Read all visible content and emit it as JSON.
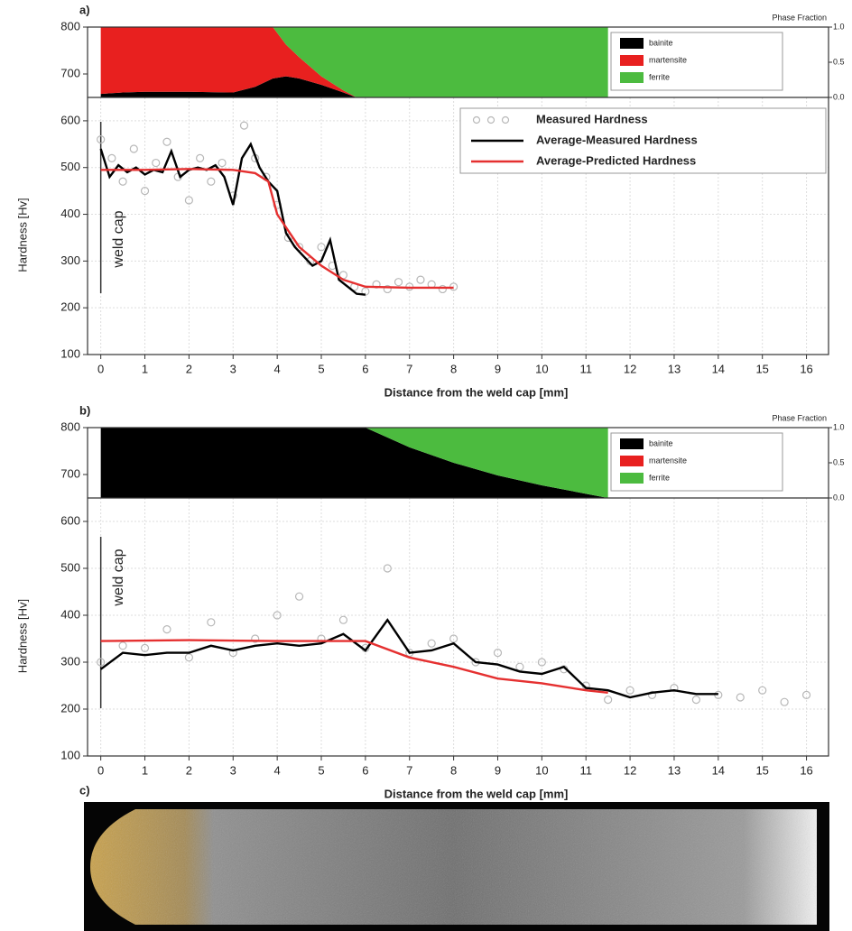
{
  "chart_data": [
    {
      "type": "line",
      "label": "a)",
      "x_label": "Distance from the weld cap [mm]",
      "y_label": "Hardness [Hv]",
      "annotation": "weld cap",
      "xlim": [
        -0.3,
        16.5
      ],
      "xticks": [
        0,
        1,
        2,
        3,
        4,
        5,
        6,
        7,
        8,
        9,
        10,
        11,
        12,
        13,
        14,
        15,
        16
      ],
      "ylim": [
        100,
        650
      ],
      "yticks": [
        100,
        200,
        300,
        400,
        500,
        600
      ],
      "grid": true,
      "legend": true,
      "phase": {
        "ylim": [
          650,
          800
        ],
        "yticks": [
          700,
          800
        ],
        "y2lim": [
          0,
          1
        ],
        "y2ticks": [
          {
            "value": 0,
            "label": "0.0"
          },
          {
            "value": 0.5,
            "label": "0.5"
          },
          {
            "value": 1,
            "label": "1.0"
          }
        ],
        "y2_label": "Phase Fraction",
        "legend": true,
        "x": [
          0,
          0.5,
          1,
          2,
          3,
          3.5,
          3.9,
          4.2,
          4.5,
          5,
          5.5,
          5.8,
          6,
          8,
          11.5
        ],
        "series": [
          {
            "name": "bainite",
            "color": "#000000",
            "values": [
              0.05,
              0.07,
              0.08,
              0.08,
              0.07,
              0.15,
              0.27,
              0.3,
              0.27,
              0.18,
              0.07,
              0,
              0,
              0,
              0
            ]
          },
          {
            "name": "martensite",
            "color": "#e8201f",
            "values": [
              0.95,
              0.93,
              0.92,
              0.92,
              0.93,
              0.85,
              0.73,
              0.45,
              0.3,
              0.12,
              0.03,
              0,
              0,
              0,
              0
            ]
          },
          {
            "name": "ferrite",
            "color": "#4cbb3f",
            "values": [
              0,
              0,
              0,
              0,
              0,
              0,
              0,
              0.25,
              0.43,
              0.7,
              0.9,
              1,
              1,
              1,
              1
            ]
          }
        ]
      },
      "series": [
        {
          "name": "Measured Hardness",
          "type": "scatter",
          "color": "#b8b8b8",
          "x": [
            0,
            0.25,
            0.5,
            0.75,
            1,
            1.25,
            1.5,
            1.75,
            2,
            2.25,
            2.5,
            2.75,
            3,
            3.25,
            3.5,
            3.75,
            4,
            4.25,
            4.5,
            4.75,
            5,
            5.25,
            5.5,
            5.75,
            6,
            6.25,
            6.5,
            6.75,
            7,
            7.25,
            7.5,
            7.75,
            8
          ],
          "values": [
            560,
            520,
            470,
            540,
            450,
            510,
            555,
            480,
            430,
            520,
            470,
            510,
            440,
            590,
            520,
            480,
            420,
            350,
            330,
            300,
            330,
            290,
            270,
            245,
            235,
            250,
            240,
            255,
            245,
            260,
            250,
            240,
            245
          ]
        },
        {
          "name": "Average-Measured Hardness",
          "type": "line",
          "color": "#000000",
          "x": [
            0,
            0.2,
            0.4,
            0.6,
            0.8,
            1,
            1.2,
            1.4,
            1.6,
            1.8,
            2,
            2.2,
            2.4,
            2.6,
            2.8,
            3,
            3.2,
            3.4,
            3.6,
            3.8,
            4,
            4.2,
            4.4,
            4.6,
            4.8,
            5,
            5.2,
            5.4,
            5.6,
            5.8,
            6
          ],
          "values": [
            540,
            480,
            505,
            490,
            500,
            485,
            495,
            490,
            535,
            480,
            495,
            500,
            495,
            505,
            480,
            420,
            520,
            550,
            500,
            470,
            450,
            360,
            330,
            310,
            290,
            300,
            345,
            260,
            245,
            230,
            228
          ]
        },
        {
          "name": "Average-Predicted Hardness",
          "type": "line",
          "color": "#e53030",
          "x": [
            0,
            1,
            2,
            3,
            3.5,
            3.8,
            4,
            4.5,
            5,
            5.5,
            6,
            7,
            8
          ],
          "values": [
            495,
            495,
            497,
            495,
            488,
            470,
            400,
            330,
            290,
            260,
            245,
            243,
            243
          ]
        }
      ]
    },
    {
      "type": "line",
      "label": "b)",
      "x_label": "Distance from the weld cap [mm]",
      "y_label": "Hardness [Hv]",
      "annotation": "weld cap",
      "xlim": [
        -0.3,
        16.5
      ],
      "xticks": [
        0,
        1,
        2,
        3,
        4,
        5,
        6,
        7,
        8,
        9,
        10,
        11,
        12,
        13,
        14,
        15,
        16
      ],
      "ylim": [
        100,
        650
      ],
      "yticks": [
        100,
        200,
        300,
        400,
        500,
        600
      ],
      "grid": true,
      "legend": false,
      "phase": {
        "ylim": [
          650,
          800
        ],
        "yticks": [
          700,
          800
        ],
        "y2lim": [
          0,
          1
        ],
        "y2ticks": [
          {
            "value": 0,
            "label": "0.0"
          },
          {
            "value": 0.5,
            "label": "0.5"
          },
          {
            "value": 1,
            "label": "1.0"
          }
        ],
        "y2_label": "Phase Fraction",
        "legend": true,
        "x": [
          0,
          6,
          7,
          8,
          9,
          10,
          11,
          11.5
        ],
        "series": [
          {
            "name": "bainite",
            "color": "#000000",
            "values": [
              1,
              1,
              0.72,
              0.5,
              0.32,
              0.18,
              0.06,
              0
            ]
          },
          {
            "name": "martensite",
            "color": "#e8201f",
            "values": [
              0,
              0,
              0,
              0,
              0,
              0,
              0,
              0
            ]
          },
          {
            "name": "ferrite",
            "color": "#4cbb3f",
            "values": [
              0,
              0,
              0.28,
              0.5,
              0.68,
              0.82,
              0.94,
              1
            ]
          }
        ]
      },
      "series": [
        {
          "type": "scatter",
          "color": "#b8b8b8",
          "x": [
            0,
            0.5,
            1,
            1.5,
            2,
            2.5,
            3,
            3.5,
            4,
            4.5,
            5,
            5.5,
            6,
            6.5,
            7,
            7.5,
            8,
            8.5,
            9,
            9.5,
            10,
            10.5,
            11,
            11.5,
            12,
            12.5,
            13,
            13.5,
            14,
            14.5,
            15,
            15.5,
            16
          ],
          "values": [
            300,
            335,
            330,
            370,
            310,
            385,
            320,
            350,
            400,
            440,
            350,
            390,
            330,
            500,
            320,
            340,
            350,
            300,
            320,
            290,
            300,
            285,
            250,
            220,
            240,
            230,
            245,
            220,
            230,
            225,
            240,
            215,
            230
          ]
        },
        {
          "type": "line",
          "color": "#000000",
          "x": [
            0,
            0.5,
            1,
            1.5,
            2,
            2.5,
            3,
            3.5,
            4,
            4.5,
            5,
            5.5,
            6,
            6.5,
            7,
            7.5,
            8,
            8.5,
            9,
            9.5,
            10,
            10.5,
            11,
            11.5,
            12,
            12.5,
            13,
            13.5,
            14
          ],
          "values": [
            285,
            320,
            315,
            320,
            320,
            335,
            325,
            335,
            340,
            335,
            340,
            360,
            325,
            390,
            320,
            325,
            340,
            300,
            295,
            280,
            275,
            290,
            245,
            240,
            225,
            235,
            240,
            232,
            232
          ]
        },
        {
          "type": "line",
          "color": "#e53030",
          "x": [
            0,
            2,
            4,
            6,
            7,
            8,
            9,
            10,
            11,
            11.5
          ],
          "values": [
            345,
            347,
            345,
            345,
            310,
            290,
            265,
            255,
            240,
            235
          ]
        }
      ]
    }
  ],
  "image": {
    "label": "c)"
  }
}
